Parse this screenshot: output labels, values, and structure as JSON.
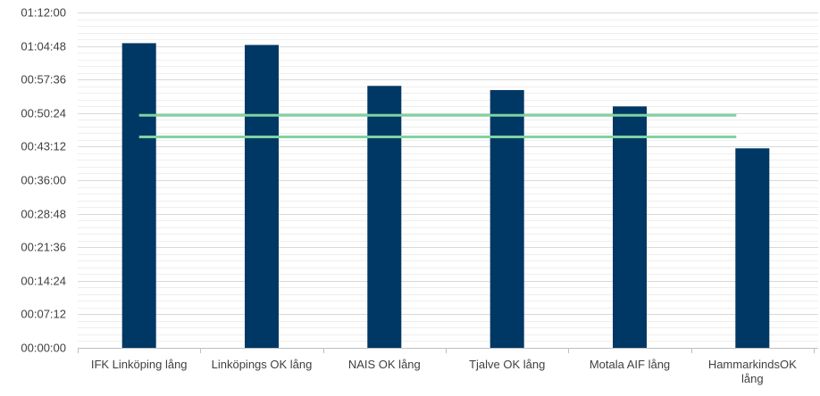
{
  "chart_data": {
    "type": "bar",
    "categories": [
      "IFK Linköping lång",
      "Linköpings OK lång",
      "NAIS OK lång",
      "Tjalve OK lång",
      "Motala AIF lång",
      "HammarkindsOK lång"
    ],
    "category_lines": [
      [
        "IFK Linköping lång"
      ],
      [
        "Linköpings OK lång"
      ],
      [
        "NAIS OK lång"
      ],
      [
        "Tjalve OK lång"
      ],
      [
        "Motala AIF lång"
      ],
      [
        "HammarkindsOK",
        "lång"
      ]
    ],
    "values_seconds": [
      3925,
      3902,
      3375,
      3320,
      3110,
      2570
    ],
    "values": [
      "01:05:25",
      "01:05:02",
      "00:56:15",
      "00:55:20",
      "00:51:50",
      "00:42:50"
    ],
    "reference_lines_seconds": [
      2995,
      2717
    ],
    "reference_lines": [
      "00:49:55",
      "00:45:17"
    ],
    "yticks": [
      "00:00:00",
      "00:07:12",
      "00:14:24",
      "00:21:36",
      "00:28:48",
      "00:36:00",
      "00:43:12",
      "00:50:24",
      "00:57:36",
      "01:04:48",
      "01:12:00"
    ],
    "ylim_seconds": [
      0,
      4320
    ],
    "ytick_step_seconds": 432,
    "minor_gridlines_per_major": 4,
    "title": "",
    "xlabel": "",
    "ylabel": "",
    "grid": true,
    "colors": {
      "bar": "#003865",
      "reference_line": "#7fd3a0",
      "grid_major": "#d9d9d9",
      "grid_minor": "#eeeeee",
      "axis": "#bfbfbf",
      "text": "#404040"
    }
  }
}
